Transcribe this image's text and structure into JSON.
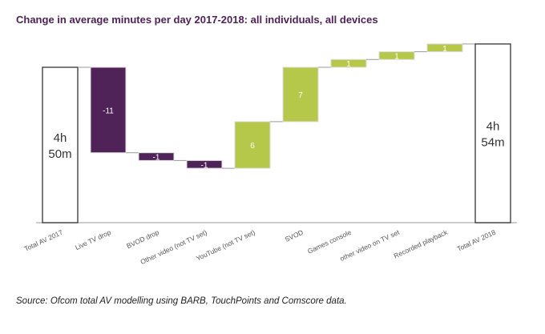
{
  "chart_data": {
    "type": "waterfall",
    "title": "Change in average minutes per day 2017-2018: all individuals, all devices",
    "categories": [
      "Total AV 2017",
      "Live TV drop",
      "BVOD drop",
      "Other video (not TV set)",
      "YouTube (not TV set)",
      "SVOD",
      "Games console",
      "other video on TV set",
      "Recorded playback",
      "Total AV 2018"
    ],
    "start": {
      "value": 290,
      "label": [
        "4h",
        "50m"
      ]
    },
    "deltas": [
      -11,
      -1,
      -1,
      6,
      7,
      1,
      1,
      1
    ],
    "delta_labels": [
      "-11",
      "-1",
      "-1",
      "6",
      "7",
      "1",
      "1",
      "1"
    ],
    "end": {
      "value": 294,
      "label": [
        "4h",
        "54m"
      ]
    },
    "ylim": [
      270,
      295
    ],
    "grid": false,
    "colors": {
      "decrease": "#4f2258",
      "increase": "#b5c84a",
      "total_fill": "#ffffff",
      "total_stroke": "#333333"
    }
  },
  "source": "Source: Ofcom total AV modelling using BARB, TouchPoints and Comscore data."
}
